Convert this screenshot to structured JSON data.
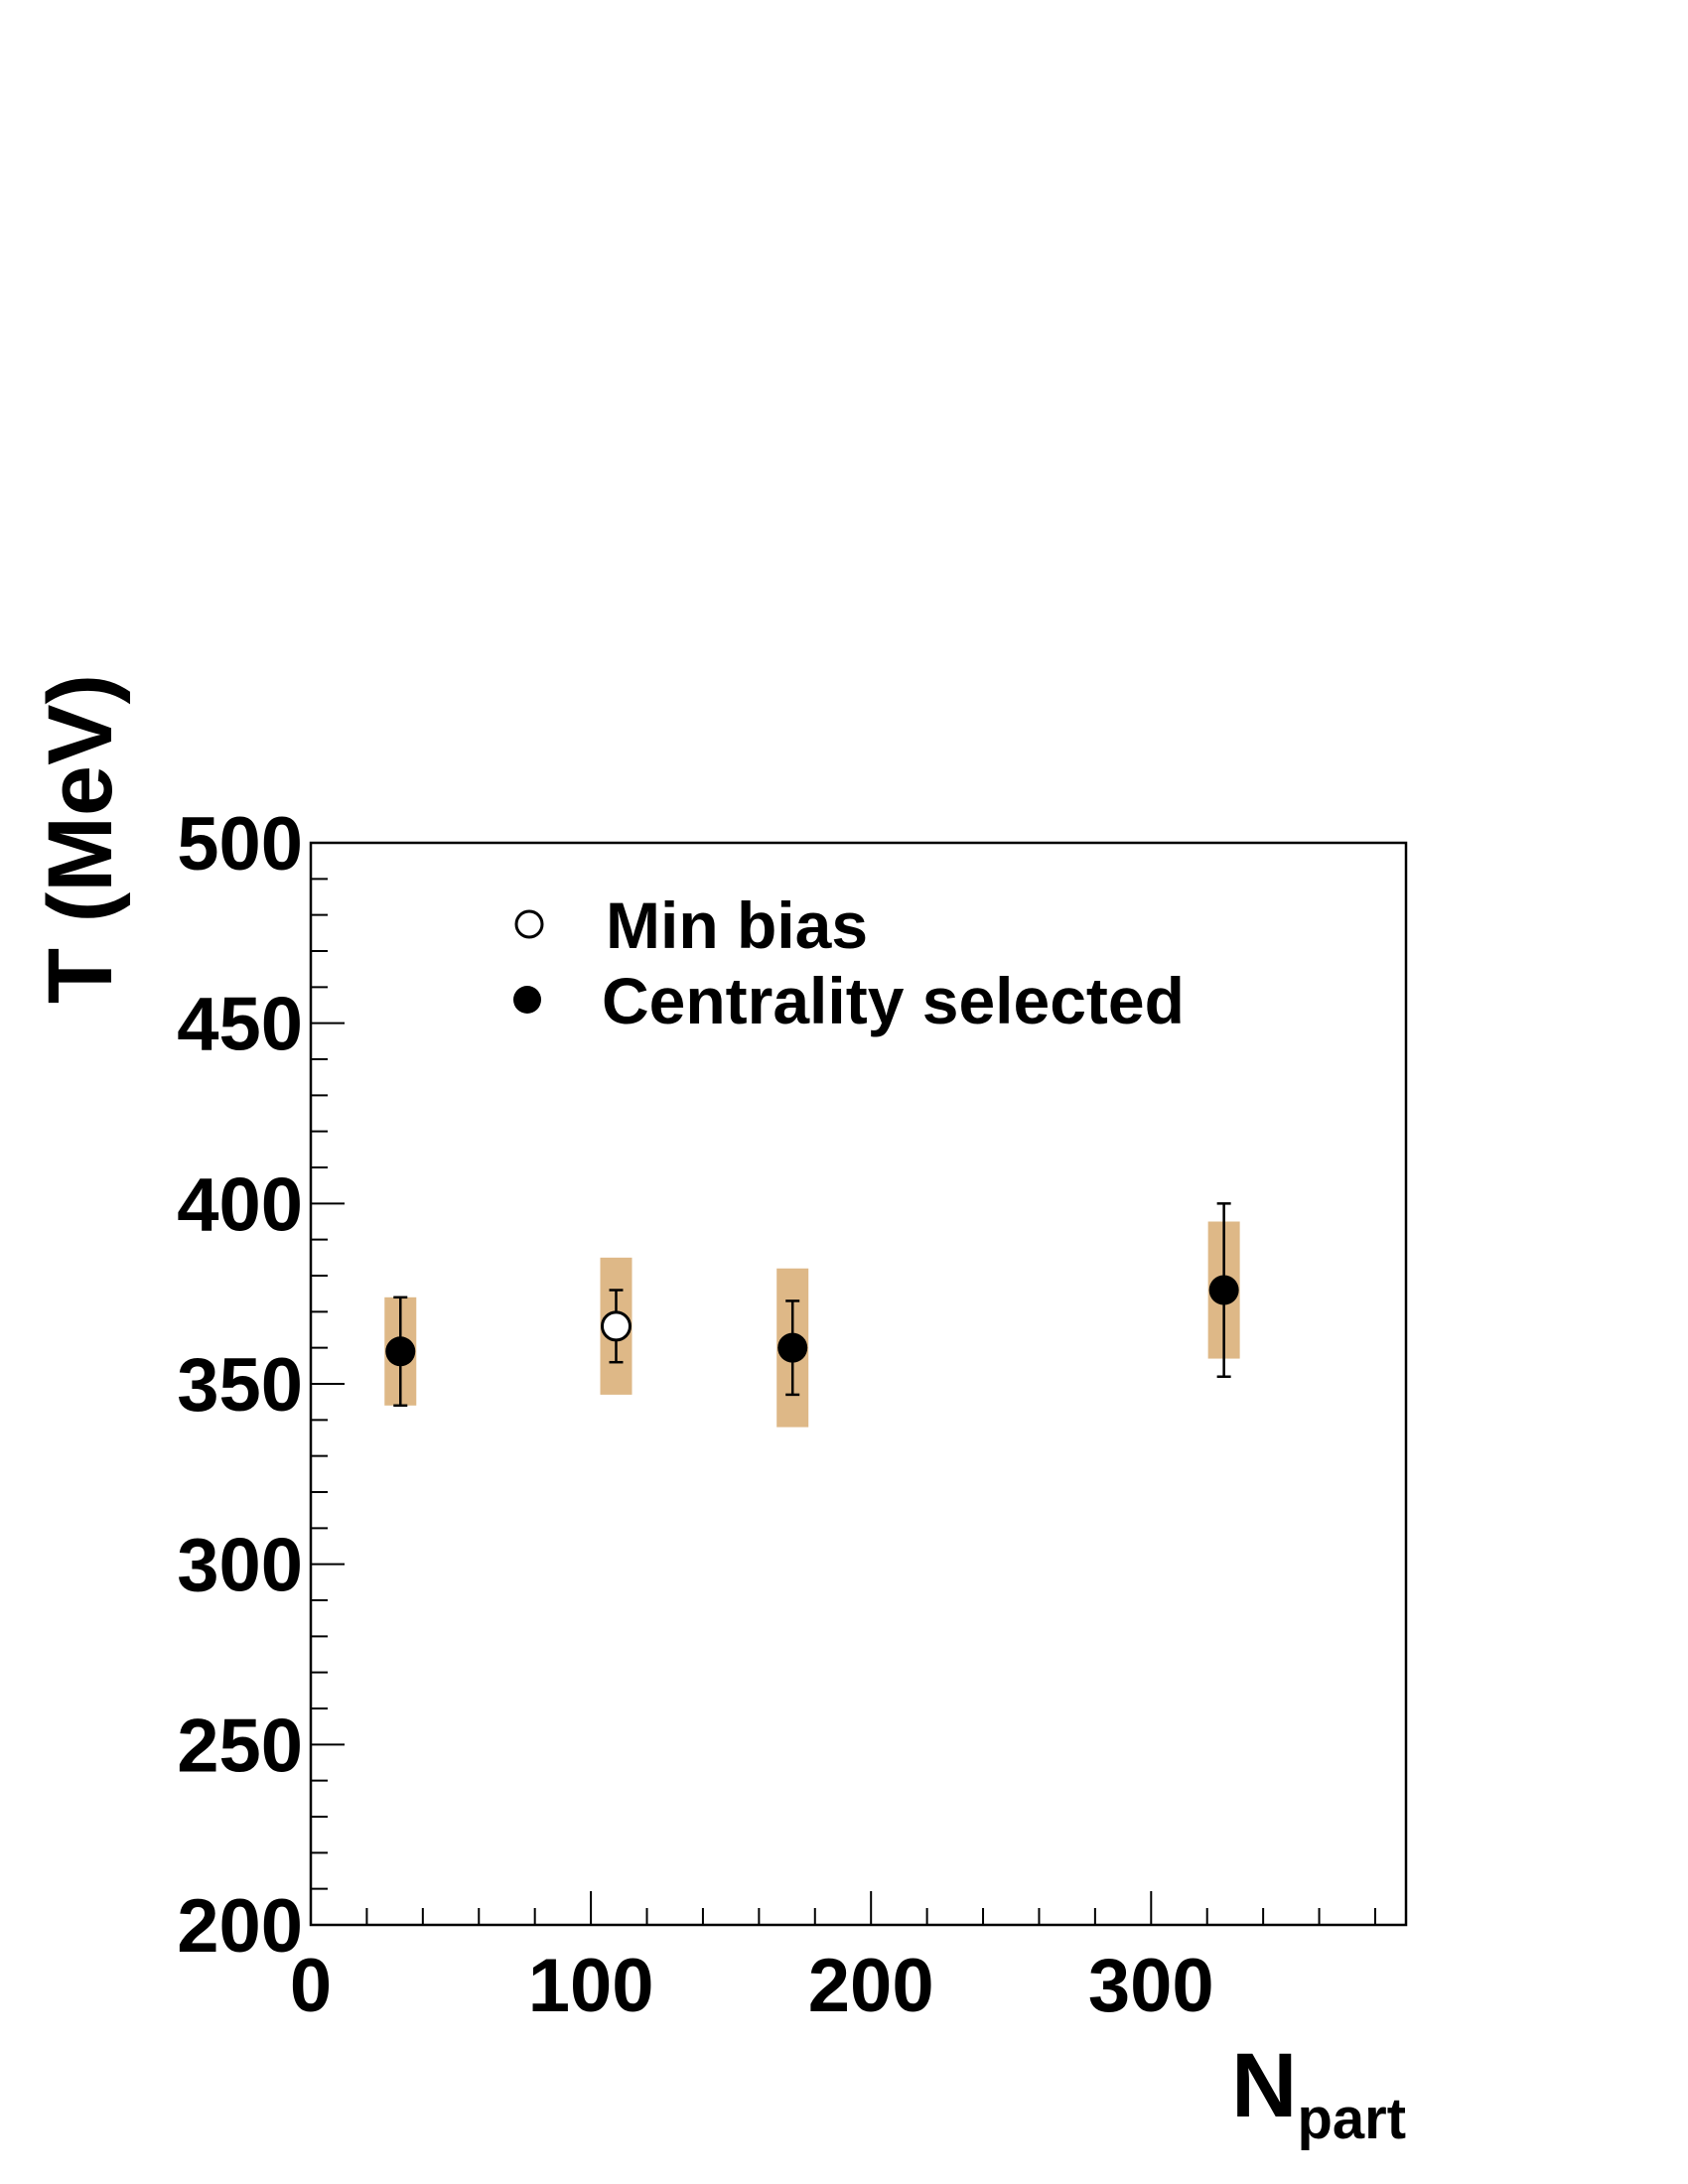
{
  "chart_data": {
    "type": "scatter",
    "xlabel": "N",
    "xlabel_sub": "part",
    "ylabel": "T (MeV)",
    "xlim": [
      0,
      391
    ],
    "ylim": [
      200,
      500
    ],
    "x_ticks": [
      0,
      100,
      200,
      300
    ],
    "y_ticks": [
      200,
      250,
      300,
      350,
      400,
      450,
      500
    ],
    "grid": false,
    "legend": "top-left",
    "series": [
      {
        "name": "Min bias",
        "marker": "open-circle",
        "points": [
          {
            "x": 109,
            "y": 366,
            "stat_low": 356,
            "stat_high": 376,
            "sys_low": 347,
            "sys_high": 385
          }
        ]
      },
      {
        "name": "Centrality selected",
        "marker": "filled-circle",
        "points": [
          {
            "x": 32,
            "y": 359,
            "stat_low": 344,
            "stat_high": 374,
            "sys_low": 344,
            "sys_high": 374
          },
          {
            "x": 172,
            "y": 360,
            "stat_low": 347,
            "stat_high": 373,
            "sys_low": 338,
            "sys_high": 382
          },
          {
            "x": 326,
            "y": 376,
            "stat_low": 352,
            "stat_high": 400,
            "sys_low": 357,
            "sys_high": 395
          }
        ]
      }
    ],
    "colors": {
      "systematic_band": "#deb887",
      "marker": "#000000",
      "frame": "#000000"
    }
  }
}
